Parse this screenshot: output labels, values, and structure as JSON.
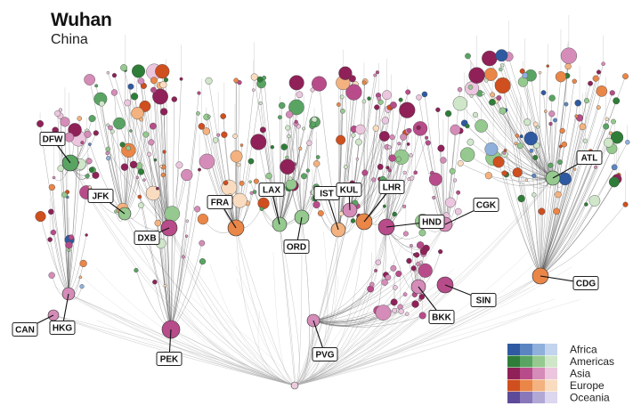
{
  "header": {
    "title": "Wuhan",
    "subtitle": "China"
  },
  "colors": {
    "Africa": [
      "#2f5aa1",
      "#5b85c2",
      "#8fb0db",
      "#c3d4ee"
    ],
    "Americas": [
      "#2e7d38",
      "#5aa463",
      "#95c98f",
      "#cfe6c9"
    ],
    "Asia": [
      "#8f2158",
      "#b84c8a",
      "#d58cb8",
      "#ecc6de"
    ],
    "Europe": [
      "#cf4f1f",
      "#e98648",
      "#f3b27f",
      "#f9dcbf"
    ],
    "Oceania": [
      "#5d4b99",
      "#8878ba",
      "#b2a8d6",
      "#dcd6ee"
    ]
  },
  "legend": [
    "Africa",
    "Americas",
    "Asia",
    "Europe",
    "Oceania"
  ],
  "root": "Wuhan",
  "hubs": [
    {
      "code": "CAN",
      "region": "Asia"
    },
    {
      "code": "HKG",
      "region": "Asia"
    },
    {
      "code": "PEK",
      "region": "Asia"
    },
    {
      "code": "PVG",
      "region": "Asia"
    },
    {
      "code": "DFW",
      "region": "Americas"
    },
    {
      "code": "JFK",
      "region": "Americas"
    },
    {
      "code": "DXB",
      "region": "Asia"
    },
    {
      "code": "FRA",
      "region": "Europe"
    },
    {
      "code": "LAX",
      "region": "Americas"
    },
    {
      "code": "ORD",
      "region": "Americas"
    },
    {
      "code": "IST",
      "region": "Europe"
    },
    {
      "code": "KUL",
      "region": "Asia"
    },
    {
      "code": "LHR",
      "region": "Europe"
    },
    {
      "code": "HND",
      "region": "Asia"
    },
    {
      "code": "CGK",
      "region": "Asia"
    },
    {
      "code": "BKK",
      "region": "Asia"
    },
    {
      "code": "SIN",
      "region": "Asia"
    },
    {
      "code": "CDG",
      "region": "Europe"
    },
    {
      "code": "ATL",
      "region": "Americas"
    }
  ]
}
